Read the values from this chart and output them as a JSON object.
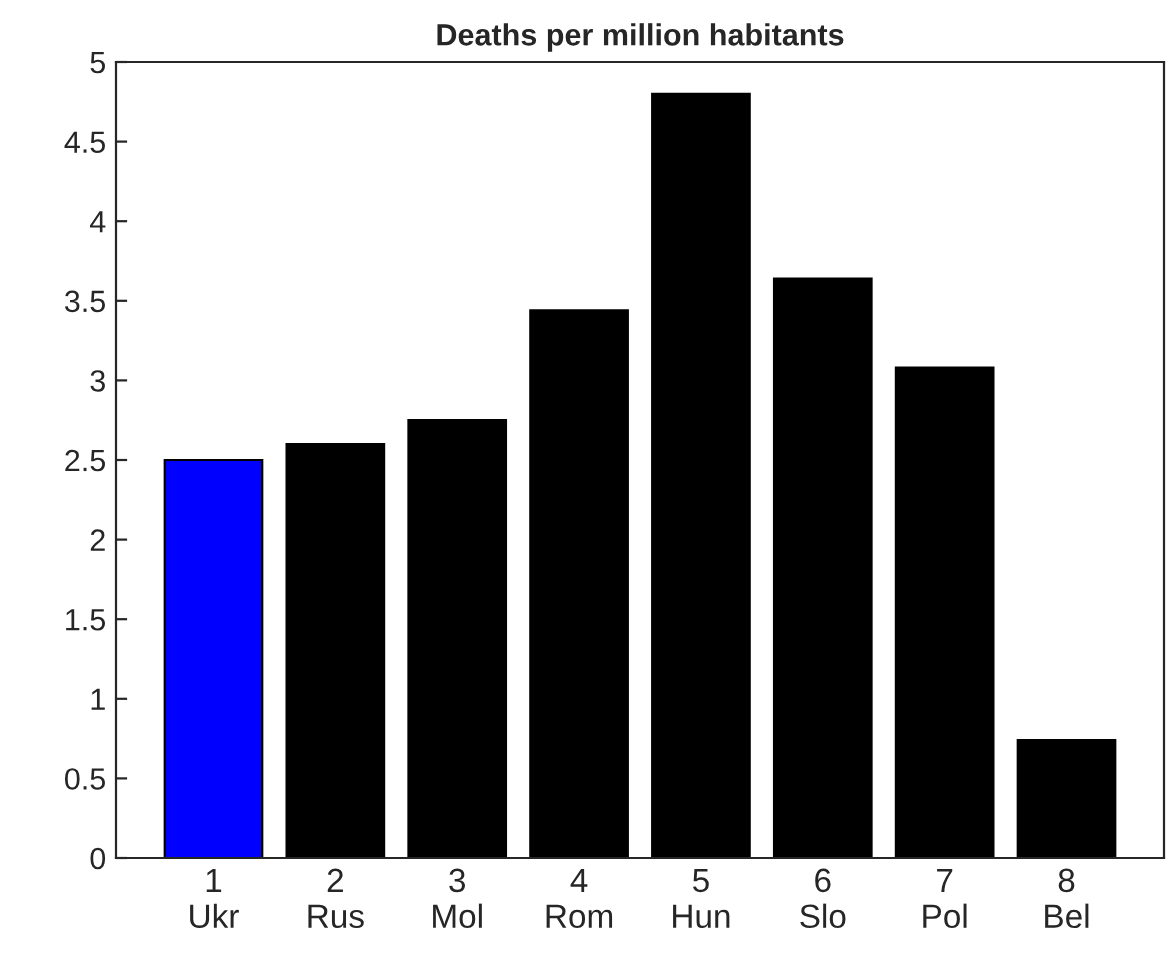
{
  "chart_data": {
    "type": "bar",
    "title": "Deaths per million habitants",
    "x": [
      1,
      2,
      3,
      4,
      5,
      6,
      7,
      8
    ],
    "values": [
      2.5,
      2.6,
      2.75,
      3.44,
      4.8,
      3.64,
      3.08,
      0.74
    ],
    "colors": [
      "#0000ff",
      "#000000",
      "#000000",
      "#000000",
      "#000000",
      "#000000",
      "#000000",
      "#000000"
    ],
    "xlim": [
      0.2,
      8.8
    ],
    "xticks": [
      {
        "value": 1,
        "label": "1\nUkr"
      },
      {
        "value": 2,
        "label": "2\nRus"
      },
      {
        "value": 3,
        "label": "3\nMol"
      },
      {
        "value": 4,
        "label": "4\nRom"
      },
      {
        "value": 5,
        "label": "5\nHun"
      },
      {
        "value": 6,
        "label": "6\nSlo"
      },
      {
        "value": 7,
        "label": "7\nPol"
      },
      {
        "value": 8,
        "label": "8\nBel"
      }
    ],
    "ylim": [
      0,
      5
    ],
    "yticks": [
      0,
      0.5,
      1,
      1.5,
      2,
      2.5,
      3,
      3.5,
      4,
      4.5,
      5
    ],
    "grid": false
  }
}
